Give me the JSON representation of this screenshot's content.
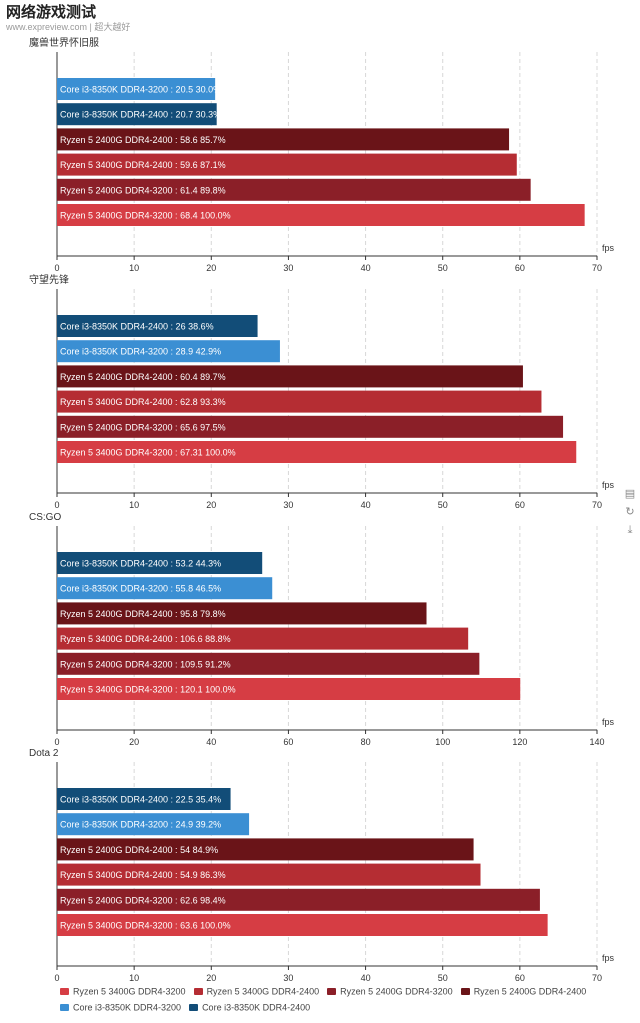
{
  "header": {
    "title": "网络游戏测试",
    "subtitle": "www.expreview.com | 超大越好"
  },
  "toolbox": {
    "icons": [
      "data-view-icon",
      "restore-icon",
      "download-icon"
    ]
  },
  "legend": [
    {
      "name": "Ryzen 5 3400G DDR4-3200",
      "color": "#d63d44"
    },
    {
      "name": "Ryzen 5 3400G DDR4-2400",
      "color": "#b52d33"
    },
    {
      "name": "Ryzen 5 2400G DDR4-3200",
      "color": "#8b1f28"
    },
    {
      "name": "Ryzen 5 2400G DDR4-2400",
      "color": "#6a1418"
    },
    {
      "name": "Core i3-8350K DDR4-3200",
      "color": "#3b8fd3"
    },
    {
      "name": "Core i3-8350K DDR4-2400",
      "color": "#124d78"
    }
  ],
  "chart_data": [
    {
      "type": "bar",
      "orientation": "horizontal",
      "title": "魔兽世界怀旧服",
      "xunit": "fps",
      "xlim": [
        0,
        70
      ],
      "ticks": [
        0,
        10,
        20,
        30,
        40,
        50,
        60,
        70
      ],
      "bars": [
        {
          "series": "Core i3-8350K DDR4-3200",
          "value": 20.5,
          "percent": "30.0%"
        },
        {
          "series": "Core i3-8350K DDR4-2400",
          "value": 20.7,
          "percent": "30.3%"
        },
        {
          "series": "Ryzen 5 2400G DDR4-2400",
          "value": 58.6,
          "percent": "85.7%"
        },
        {
          "series": "Ryzen 5 3400G DDR4-2400",
          "value": 59.6,
          "percent": "87.1%"
        },
        {
          "series": "Ryzen 5 2400G DDR4-3200",
          "value": 61.4,
          "percent": "89.8%"
        },
        {
          "series": "Ryzen 5 3400G DDR4-3200",
          "value": 68.4,
          "percent": "100.0%"
        }
      ]
    },
    {
      "type": "bar",
      "orientation": "horizontal",
      "title": "守望先锋",
      "xunit": "fps",
      "xlim": [
        0,
        70
      ],
      "ticks": [
        0,
        10,
        20,
        30,
        40,
        50,
        60,
        70
      ],
      "bars": [
        {
          "series": "Core i3-8350K DDR4-2400",
          "value": 26,
          "percent": "38.6%"
        },
        {
          "series": "Core i3-8350K DDR4-3200",
          "value": 28.9,
          "percent": "42.9%"
        },
        {
          "series": "Ryzen 5 2400G DDR4-2400",
          "value": 60.4,
          "percent": "89.7%"
        },
        {
          "series": "Ryzen 5 3400G DDR4-2400",
          "value": 62.8,
          "percent": "93.3%"
        },
        {
          "series": "Ryzen 5 2400G DDR4-3200",
          "value": 65.6,
          "percent": "97.5%"
        },
        {
          "series": "Ryzen 5 3400G DDR4-3200",
          "value": 67.31,
          "percent": "100.0%"
        }
      ]
    },
    {
      "type": "bar",
      "orientation": "horizontal",
      "title": "CS:GO",
      "xunit": "fps",
      "xlim": [
        0,
        140
      ],
      "ticks": [
        0,
        20,
        40,
        60,
        80,
        100,
        120,
        140
      ],
      "bars": [
        {
          "series": "Core i3-8350K DDR4-2400",
          "value": 53.2,
          "percent": "44.3%"
        },
        {
          "series": "Core i3-8350K DDR4-3200",
          "value": 55.8,
          "percent": "46.5%"
        },
        {
          "series": "Ryzen 5 2400G DDR4-2400",
          "value": 95.8,
          "percent": "79.8%"
        },
        {
          "series": "Ryzen 5 3400G DDR4-2400",
          "value": 106.6,
          "percent": "88.8%"
        },
        {
          "series": "Ryzen 5 2400G DDR4-3200",
          "value": 109.5,
          "percent": "91.2%"
        },
        {
          "series": "Ryzen 5 3400G DDR4-3200",
          "value": 120.1,
          "percent": "100.0%"
        }
      ]
    },
    {
      "type": "bar",
      "orientation": "horizontal",
      "title": "Dota 2",
      "xunit": "fps",
      "xlim": [
        0,
        70
      ],
      "ticks": [
        0,
        10,
        20,
        30,
        40,
        50,
        60,
        70
      ],
      "bars": [
        {
          "series": "Core i3-8350K DDR4-2400",
          "value": 22.5,
          "percent": "35.4%"
        },
        {
          "series": "Core i3-8350K DDR4-3200",
          "value": 24.9,
          "percent": "39.2%"
        },
        {
          "series": "Ryzen 5 2400G DDR4-2400",
          "value": 54,
          "percent": "84.9%"
        },
        {
          "series": "Ryzen 5 3400G DDR4-2400",
          "value": 54.9,
          "percent": "86.3%"
        },
        {
          "series": "Ryzen 5 2400G DDR4-3200",
          "value": 62.6,
          "percent": "98.4%"
        },
        {
          "series": "Ryzen 5 3400G DDR4-3200",
          "value": 63.6,
          "percent": "100.0%"
        }
      ]
    }
  ]
}
